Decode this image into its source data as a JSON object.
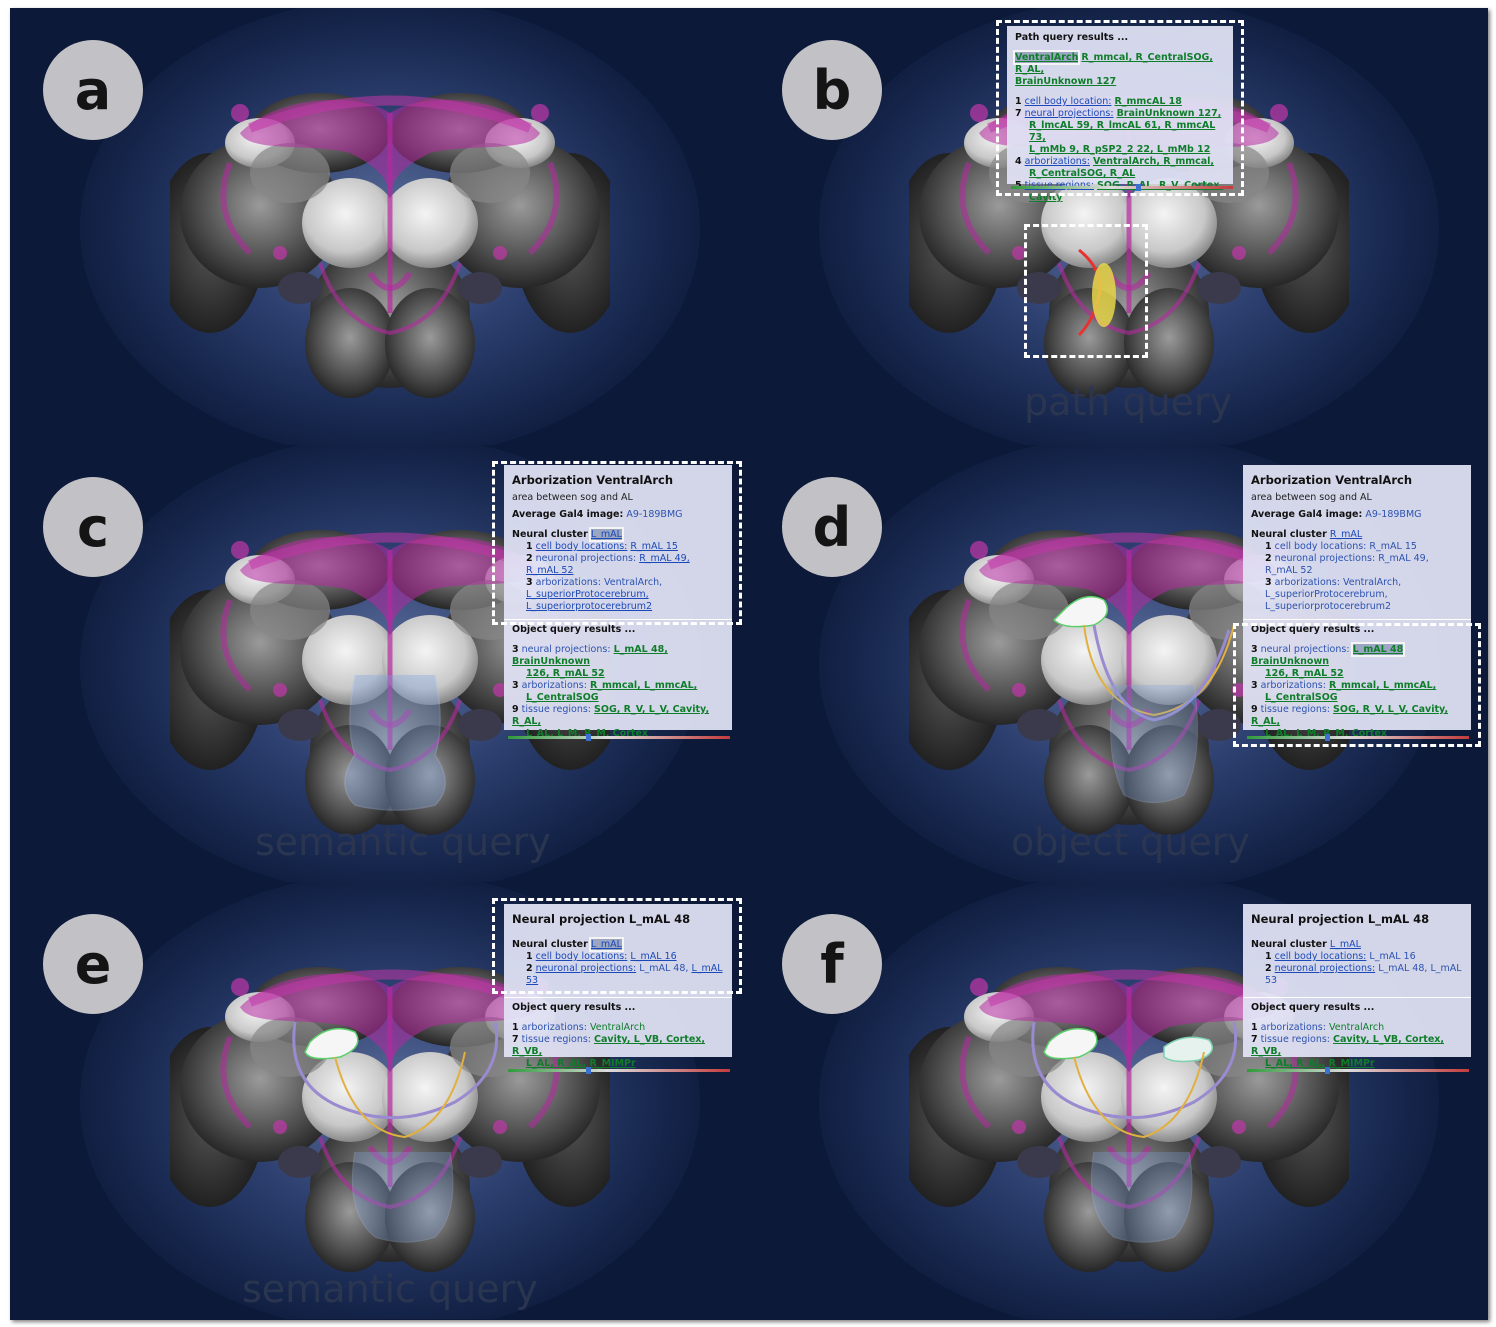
{
  "panels": [
    {
      "letter": "a",
      "caption": ""
    },
    {
      "letter": "b",
      "caption": "path query"
    },
    {
      "letter": "c",
      "caption": "semantic query"
    },
    {
      "letter": "d",
      "caption": "object query"
    },
    {
      "letter": "e",
      "caption": "semantic query"
    },
    {
      "letter": "f",
      "caption": ""
    }
  ],
  "b": {
    "title": "Path query results ...",
    "path": {
      "sel": "VentralArch",
      "rest": "R_mmcal, R_CentralSOG, R_AL,",
      "rest2": "BrainUnknown 127"
    },
    "rows": [
      {
        "n": "1",
        "k": "cell body location:",
        "v": "R_mmcAL 18"
      },
      {
        "n": "7",
        "k": "neural projections:",
        "v": "BrainUnknown 127,",
        "v2": "R_lmcAL 59, R_lmcAL 61, R_mmcAL 73,",
        "v3": "L_mMb 9, R_pSP2_2 22, L_mMb 12"
      },
      {
        "n": "4",
        "k": "arborizations:",
        "v": "VentralArch, R_mmcal,",
        "v2": "R_CentralSOG, R_AL"
      },
      {
        "n": "5",
        "k": "tissue regions:",
        "v": "SOG, R_AL, R_V, Cortex,",
        "v2": "Cavity"
      }
    ]
  },
  "arbor": {
    "title": "Arborization VentralArch",
    "desc": "area between sog and AL",
    "gal_label": "Average Gal4 image:",
    "gal_value": "A9-189BMG",
    "cluster_label": "Neural cluster",
    "cluster_value": "L_mAL",
    "cluster_value_d": "R_mAL",
    "c1n": "1",
    "c1k": "cell body locations:",
    "c1v": "R_mAL 15",
    "c2n": "2",
    "c2k": "neuronal projections:",
    "c2v": "R_mAL 49, R_mAL 52",
    "c3n": "3",
    "c3k": "arborizations:",
    "c3v": "VentralArch,",
    "c3v2": "L_superiorProtocerebrum,",
    "c3v3": "L_superiorprotocerebrum2"
  },
  "objc": {
    "title": "Object query results ...",
    "r1n": "3",
    "r1k": "neural projections:",
    "r1v": "L_mAL 48, BrainUnknown",
    "r1v2": "126, R_mAL 52",
    "r2n": "3",
    "r2k": "arborizations:",
    "r2v": "R_mmcal, L_mmcAL,",
    "r2v2": "L_CentralSOG",
    "r3n": "9",
    "r3k": "tissue regions:",
    "r3v": "SOG, R_V, L_V, Cavity, R_AL,",
    "r3v2": "L_AL, L_M, R_M, Cortex"
  },
  "objd": {
    "title": "Object query results ...",
    "r1n": "3",
    "r1k": "neural projections:",
    "r1sel": "L_mAL 48",
    "r1v": "BrainUnknown",
    "r1v2": "126, R_mAL 52",
    "r2n": "3",
    "r2k": "arborizations:",
    "r2v": "R_mmcal, L_mmcAL,",
    "r2v2": "L_CentralSOG",
    "r3n": "9",
    "r3k": "tissue regions:",
    "r3v": "SOG, R_V, L_V, Cavity, R_AL,",
    "r3v2": "L_AL, L_M, R_M, Cortex"
  },
  "proj": {
    "title": "Neural projection L_mAL 48",
    "cluster_label": "Neural cluster",
    "cluster_value": "L_mAL",
    "c1n": "1",
    "c1k": "cell body locations:",
    "c1v": "L_mAL 16",
    "c2n": "2",
    "c2k": "neuronal projections:",
    "c2v": "L_mAL 48,",
    "c2v2": "L_mAL 53",
    "obj_title": "Object query results ...",
    "o1n": "1",
    "o1k": "arborizations:",
    "o1v": "VentralArch",
    "o2n": "7",
    "o2k": "tissue regions:",
    "o2v": "Cavity, L_VB, Cortex, R_VB,",
    "o2v2": "L_AL, R_AL, R_MIMPr"
  },
  "colors": {
    "background": "#0c1938",
    "magenta": "#b42aa0",
    "card": "#e0e2f4",
    "link_green": "#0f7d2a",
    "link_blue": "#1b49b8"
  }
}
